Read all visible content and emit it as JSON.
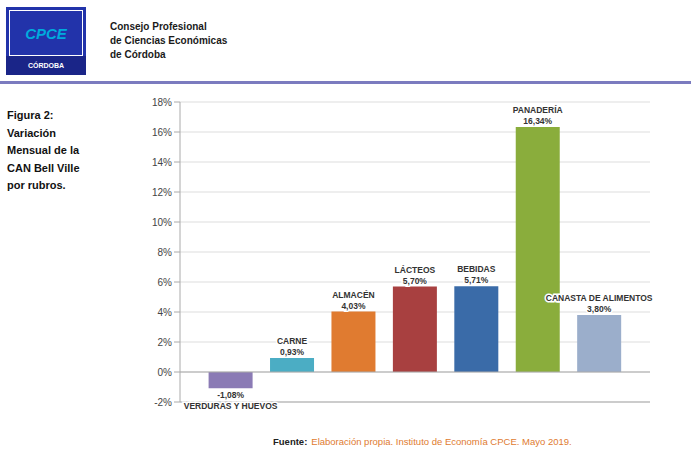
{
  "chart_data": {
    "type": "bar",
    "title": "Figura 2:\nVariación\nMensual de la\nCAN Bell Ville\npor rubros.",
    "categories": [
      "VERDURAS Y HUEVOS",
      "CARNE",
      "ALMACÉN",
      "LÁCTEOS",
      "BEBIDAS",
      "PANADERÍA",
      "CANASTA DE ALIMENTOS"
    ],
    "values": [
      -1.08,
      0.93,
      4.03,
      5.7,
      5.71,
      16.34,
      3.8
    ],
    "value_labels": [
      "-1,08%",
      "0,93%",
      "4,03%",
      "5,70%",
      "5,71%",
      "16,34%",
      "3,80%"
    ],
    "colors": [
      "#8B7BB5",
      "#4BADC4",
      "#E07B30",
      "#A84040",
      "#3A6BA8",
      "#8AAD3C",
      "#9BAECB"
    ],
    "ylim": [
      -2,
      18
    ],
    "yticks": [
      {
        "value": -2,
        "label": "-2%"
      },
      {
        "value": 0,
        "label": "0%"
      },
      {
        "value": 2,
        "label": "2%"
      },
      {
        "value": 4,
        "label": "4%"
      },
      {
        "value": 6,
        "label": "6%"
      },
      {
        "value": 8,
        "label": "8%"
      },
      {
        "value": 10,
        "label": "10%"
      },
      {
        "value": 12,
        "label": "12%"
      },
      {
        "value": 14,
        "label": "14%"
      },
      {
        "value": 16,
        "label": "16%"
      },
      {
        "value": 18,
        "label": "18%"
      }
    ],
    "grid": true,
    "data_labels": true,
    "tick_labels": "y",
    "annotations": [
      "CPCE",
      "CÓRDOBA",
      "Consejo Profesional",
      "de Ciencias Económicas",
      "de Córdoba",
      "Fuente:",
      "Elaboración propia. Instituto de Economía CPCE. Mayo 2019."
    ]
  }
}
